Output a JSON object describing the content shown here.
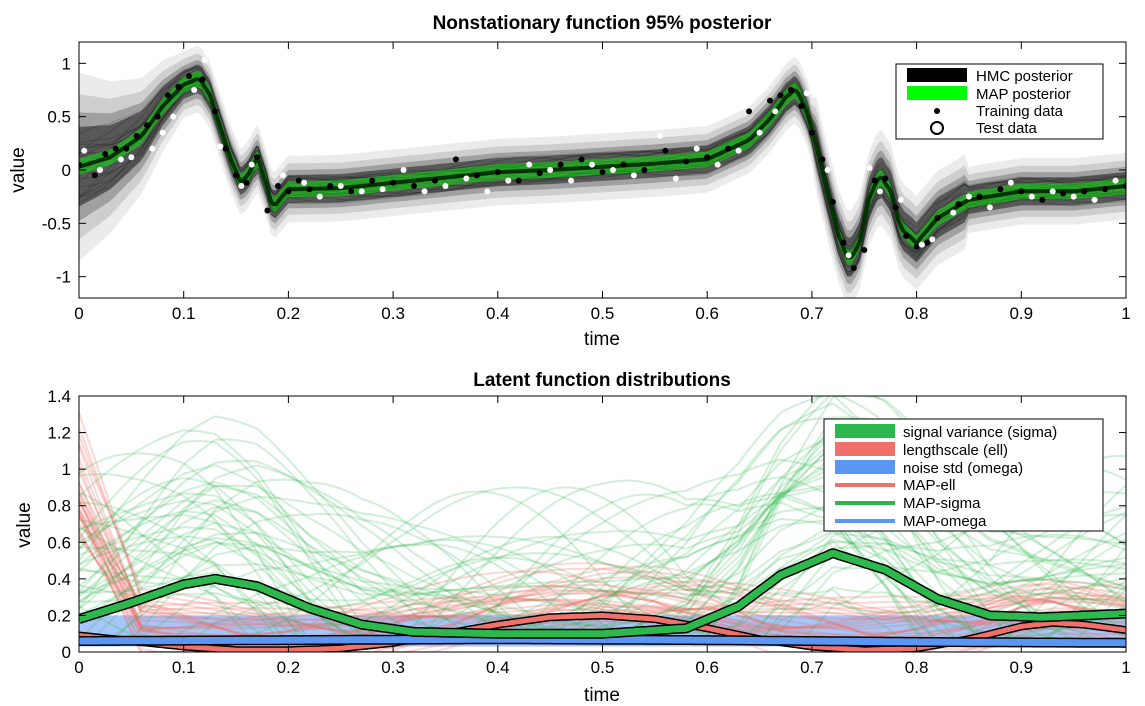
{
  "colors": {
    "hmc": "#000000",
    "map_top": "#00ff00",
    "sigma": "#2db84d",
    "ell": "#f0706a",
    "omega": "#5b97f2",
    "training": "#000000",
    "test": "#ffffff"
  },
  "chart_data": [
    {
      "type": "line",
      "title": "Nonstationary function 95% posterior",
      "xlabel": "time",
      "ylabel": "value",
      "xlim": [
        0,
        1
      ],
      "ylim": [
        -1.2,
        1.2
      ],
      "grid": false,
      "legend_position": "top-right",
      "xticks": [
        "0",
        "0.1",
        "0.2",
        "0.3",
        "0.4",
        "0.5",
        "0.6",
        "0.7",
        "0.8",
        "0.9",
        "1"
      ],
      "yticks": [
        "-1",
        "-0.5",
        "0",
        "0.5",
        "1"
      ],
      "legend": [
        "HMC posterior",
        "MAP posterior",
        "Training data",
        "Test data"
      ],
      "mean_curve": {
        "x": [
          0,
          0.03,
          0.06,
          0.08,
          0.1,
          0.115,
          0.125,
          0.135,
          0.145,
          0.155,
          0.163,
          0.17,
          0.178,
          0.185,
          0.2,
          0.25,
          0.3,
          0.35,
          0.4,
          0.45,
          0.5,
          0.55,
          0.6,
          0.64,
          0.66,
          0.675,
          0.685,
          0.695,
          0.705,
          0.715,
          0.725,
          0.735,
          0.745,
          0.755,
          0.765,
          0.775,
          0.785,
          0.8,
          0.82,
          0.85,
          0.9,
          0.95,
          1
        ],
        "y": [
          0.03,
          0.12,
          0.32,
          0.6,
          0.8,
          0.86,
          0.7,
          0.4,
          0.1,
          -0.12,
          -0.02,
          0.12,
          -0.1,
          -0.35,
          -0.18,
          -0.17,
          -0.12,
          -0.07,
          -0.02,
          0.0,
          0.03,
          0.06,
          0.1,
          0.28,
          0.48,
          0.68,
          0.76,
          0.55,
          0.2,
          -0.22,
          -0.6,
          -0.85,
          -0.7,
          -0.25,
          -0.05,
          -0.2,
          -0.55,
          -0.68,
          -0.45,
          -0.28,
          -0.2,
          -0.2,
          -0.15
        ]
      },
      "training_data": {
        "x": [
          0.0,
          0.015,
          0.025,
          0.035,
          0.045,
          0.055,
          0.065,
          0.075,
          0.085,
          0.095,
          0.105,
          0.118,
          0.13,
          0.14,
          0.15,
          0.16,
          0.17,
          0.18,
          0.19,
          0.2,
          0.21,
          0.22,
          0.24,
          0.26,
          0.28,
          0.3,
          0.32,
          0.34,
          0.36,
          0.38,
          0.4,
          0.42,
          0.44,
          0.46,
          0.48,
          0.5,
          0.52,
          0.54,
          0.56,
          0.58,
          0.6,
          0.62,
          0.64,
          0.66,
          0.67,
          0.68,
          0.69,
          0.7,
          0.71,
          0.72,
          0.73,
          0.74,
          0.75,
          0.76,
          0.77,
          0.78,
          0.79,
          0.8,
          0.81,
          0.82,
          0.84,
          0.86,
          0.88,
          0.9,
          0.92,
          0.94,
          0.96,
          0.98,
          1.0
        ],
        "y": [
          0.05,
          -0.05,
          0.15,
          0.2,
          0.2,
          0.32,
          0.42,
          0.5,
          0.7,
          0.78,
          0.88,
          0.85,
          0.55,
          0.2,
          -0.05,
          -0.12,
          0.12,
          -0.38,
          -0.15,
          -0.2,
          -0.1,
          -0.18,
          -0.15,
          -0.2,
          -0.1,
          -0.12,
          -0.15,
          -0.1,
          0.1,
          -0.05,
          -0.02,
          -0.1,
          -0.03,
          0.05,
          0.1,
          -0.02,
          0.05,
          0.0,
          0.18,
          0.08,
          0.12,
          0.2,
          0.55,
          0.65,
          0.7,
          0.75,
          0.6,
          0.35,
          0.1,
          -0.3,
          -0.68,
          -0.92,
          -0.75,
          -0.1,
          -0.08,
          -0.35,
          -0.62,
          -0.72,
          -0.68,
          -0.45,
          -0.32,
          -0.25,
          -0.18,
          -0.2,
          -0.28,
          -0.22,
          -0.2,
          -0.18,
          -0.15
        ]
      },
      "test_data": {
        "x": [
          0.005,
          0.02,
          0.04,
          0.05,
          0.07,
          0.08,
          0.09,
          0.11,
          0.12,
          0.135,
          0.155,
          0.165,
          0.195,
          0.215,
          0.23,
          0.25,
          0.27,
          0.29,
          0.31,
          0.33,
          0.35,
          0.37,
          0.39,
          0.41,
          0.43,
          0.45,
          0.47,
          0.49,
          0.51,
          0.53,
          0.555,
          0.57,
          0.59,
          0.61,
          0.63,
          0.65,
          0.665,
          0.695,
          0.715,
          0.735,
          0.755,
          0.765,
          0.785,
          0.805,
          0.815,
          0.835,
          0.85,
          0.87,
          0.89,
          0.91,
          0.93,
          0.95,
          0.97,
          0.99
        ],
        "y": [
          0.18,
          0.0,
          0.1,
          0.12,
          0.2,
          0.35,
          0.5,
          0.75,
          1.03,
          0.22,
          -0.15,
          0.05,
          -0.05,
          -0.12,
          -0.25,
          -0.15,
          -0.2,
          -0.18,
          0.0,
          -0.2,
          -0.15,
          -0.08,
          -0.2,
          -0.1,
          0.05,
          0.0,
          -0.1,
          0.05,
          0.0,
          -0.05,
          0.32,
          -0.08,
          0.2,
          0.05,
          0.18,
          0.35,
          0.55,
          0.72,
          0.0,
          -0.8,
          0.02,
          -0.2,
          -0.28,
          -0.7,
          -0.65,
          -0.4,
          -0.25,
          -0.35,
          -0.12,
          -0.25,
          -0.2,
          -0.25,
          -0.28,
          -0.1
        ]
      }
    },
    {
      "type": "line",
      "title": "Latent function distributions",
      "xlabel": "time",
      "ylabel": "value",
      "xlim": [
        0,
        1
      ],
      "ylim": [
        0,
        1.4
      ],
      "grid": false,
      "legend_position": "top-right",
      "xticks": [
        "0",
        "0.1",
        "0.2",
        "0.3",
        "0.4",
        "0.5",
        "0.6",
        "0.7",
        "0.8",
        "0.9",
        "1"
      ],
      "yticks": [
        "0",
        "0.2",
        "0.4",
        "0.6",
        "0.8",
        "1",
        "1.2",
        "1.4"
      ],
      "legend": [
        "signal variance (sigma)",
        "lengthscale (ell)",
        "noise std (omega)",
        "MAP-ell",
        "MAP-sigma",
        "MAP-omega"
      ],
      "series": [
        {
          "name": "MAP-sigma",
          "x": [
            0,
            0.05,
            0.1,
            0.13,
            0.17,
            0.22,
            0.27,
            0.32,
            0.4,
            0.5,
            0.58,
            0.63,
            0.67,
            0.72,
            0.77,
            0.82,
            0.87,
            0.92,
            0.96,
            1
          ],
          "y": [
            0.18,
            0.27,
            0.37,
            0.4,
            0.36,
            0.24,
            0.15,
            0.11,
            0.1,
            0.1,
            0.13,
            0.25,
            0.42,
            0.54,
            0.45,
            0.29,
            0.2,
            0.19,
            0.2,
            0.21
          ]
        },
        {
          "name": "MAP-ell",
          "x": [
            0,
            0.05,
            0.1,
            0.15,
            0.2,
            0.25,
            0.3,
            0.35,
            0.4,
            0.45,
            0.5,
            0.55,
            0.6,
            0.65,
            0.7,
            0.75,
            0.8,
            0.85,
            0.9,
            0.93,
            0.96,
            1
          ],
          "y": [
            0.09,
            0.06,
            0.03,
            0.01,
            0.01,
            0.02,
            0.05,
            0.1,
            0.15,
            0.19,
            0.2,
            0.18,
            0.13,
            0.07,
            0.03,
            0.01,
            0.02,
            0.07,
            0.14,
            0.16,
            0.15,
            0.12
          ]
        },
        {
          "name": "MAP-omega",
          "x": [
            0,
            0.2,
            0.4,
            0.6,
            0.8,
            1
          ],
          "y": [
            0.06,
            0.065,
            0.07,
            0.065,
            0.055,
            0.05
          ]
        }
      ]
    }
  ]
}
